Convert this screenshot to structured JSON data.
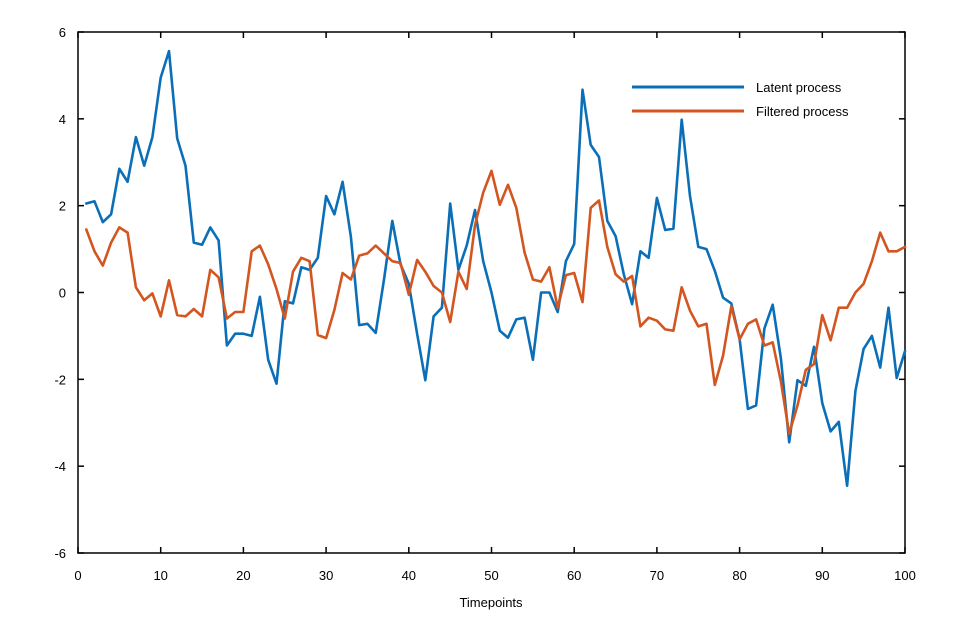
{
  "chart_data": {
    "type": "line",
    "title": "",
    "xlabel": "Timepoints",
    "ylabel": "",
    "xlim": [
      0,
      100
    ],
    "ylim": [
      -6,
      6
    ],
    "xticks": [
      0,
      10,
      20,
      30,
      40,
      50,
      60,
      70,
      80,
      90,
      100
    ],
    "yticks": [
      -6,
      -4,
      -2,
      0,
      2,
      4,
      6
    ],
    "grid": false,
    "legend_position": "top-right",
    "x": [
      1,
      2,
      3,
      4,
      5,
      6,
      7,
      8,
      9,
      10,
      11,
      12,
      13,
      14,
      15,
      16,
      17,
      18,
      19,
      20,
      21,
      22,
      23,
      24,
      25,
      26,
      27,
      28,
      29,
      30,
      31,
      32,
      33,
      34,
      35,
      36,
      37,
      38,
      39,
      40,
      41,
      42,
      43,
      44,
      45,
      46,
      47,
      48,
      49,
      50,
      51,
      52,
      53,
      54,
      55,
      56,
      57,
      58,
      59,
      60,
      61,
      62,
      63,
      64,
      65,
      66,
      67,
      68,
      69,
      70,
      71,
      72,
      73,
      74,
      75,
      76,
      77,
      78,
      79,
      80,
      81,
      82,
      83,
      84,
      85,
      86,
      87,
      88,
      89,
      90,
      91,
      92,
      93,
      94,
      95,
      96,
      97,
      98,
      99,
      100
    ],
    "series": [
      {
        "name": "Latent process",
        "color": "#0b6fb8",
        "values": [
          2.05,
          2.1,
          1.62,
          1.8,
          2.85,
          2.55,
          3.58,
          2.92,
          3.58,
          4.95,
          5.56,
          3.55,
          2.92,
          1.15,
          1.1,
          1.5,
          1.2,
          -1.22,
          -0.95,
          -0.95,
          -1.0,
          -0.1,
          -1.55,
          -2.1,
          -0.2,
          -0.25,
          0.58,
          0.52,
          0.8,
          2.22,
          1.8,
          2.55,
          1.28,
          -0.75,
          -0.72,
          -0.93,
          0.3,
          1.65,
          0.65,
          0.2,
          -0.95,
          -2.02,
          -0.55,
          -0.35,
          2.05,
          0.52,
          1.08,
          1.9,
          0.72,
          0.0,
          -0.88,
          -1.04,
          -0.62,
          -0.58,
          -1.55,
          0.0,
          0.0,
          -0.45,
          0.72,
          1.12,
          4.67,
          3.4,
          3.12,
          1.65,
          1.3,
          0.42,
          -0.27,
          0.95,
          0.8,
          2.18,
          1.44,
          1.47,
          3.98,
          2.22,
          1.05,
          1.0,
          0.5,
          -0.12,
          -0.25,
          -1.07,
          -2.68,
          -2.6,
          -0.83,
          -0.28,
          -1.52,
          -3.45,
          -2.02,
          -2.15,
          -1.25,
          -2.55,
          -3.2,
          -2.98,
          -4.45,
          -2.27,
          -1.3,
          -1.0,
          -1.73,
          -0.35,
          -1.97,
          -1.35
        ]
      },
      {
        "name": "Filtered process",
        "color": "#d35621",
        "values": [
          1.45,
          0.95,
          0.62,
          1.15,
          1.5,
          1.38,
          0.12,
          -0.18,
          -0.02,
          -0.55,
          0.28,
          -0.52,
          -0.55,
          -0.38,
          -0.55,
          0.52,
          0.35,
          -0.6,
          -0.45,
          -0.45,
          0.95,
          1.08,
          0.65,
          0.08,
          -0.6,
          0.48,
          0.8,
          0.72,
          -0.98,
          -1.05,
          -0.4,
          0.45,
          0.3,
          0.85,
          0.9,
          1.08,
          0.9,
          0.72,
          0.68,
          -0.05,
          0.75,
          0.48,
          0.15,
          0.0,
          -0.68,
          0.48,
          0.08,
          1.55,
          2.3,
          2.8,
          2.02,
          2.48,
          1.95,
          0.92,
          0.3,
          0.25,
          0.58,
          -0.35,
          0.4,
          0.45,
          -0.22,
          1.95,
          2.12,
          1.05,
          0.42,
          0.25,
          0.38,
          -0.78,
          -0.58,
          -0.65,
          -0.85,
          -0.88,
          0.12,
          -0.42,
          -0.78,
          -0.72,
          -2.13,
          -1.45,
          -0.32,
          -1.08,
          -0.72,
          -0.62,
          -1.22,
          -1.15,
          -2.05,
          -3.25,
          -2.6,
          -1.78,
          -1.65,
          -0.52,
          -1.1,
          -0.35,
          -0.35,
          -0.0,
          0.2,
          0.72,
          1.38,
          0.95,
          0.95,
          1.05
        ]
      }
    ]
  }
}
